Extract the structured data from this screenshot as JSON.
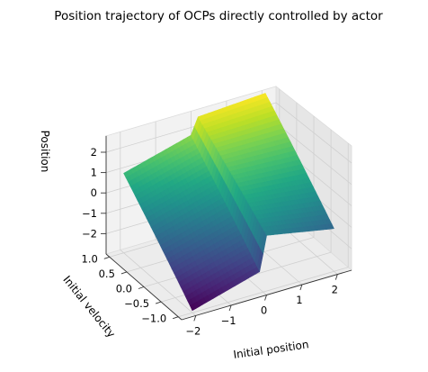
{
  "chart_data": {
    "type": "surface3d",
    "title": "Position trajectory of OCPs directly controlled by actor",
    "xlabel": "Initial position",
    "ylabel": "Initial velocity",
    "zlabel": "Position",
    "xlim": [
      -2.4,
      2.4
    ],
    "ylim": [
      -1.1,
      1.1
    ],
    "zlim": [
      -3.0,
      2.8
    ],
    "x_ticks": [
      -2,
      -1,
      0,
      1,
      2
    ],
    "y_ticks": [
      -1.0,
      -0.5,
      0.0,
      0.5,
      1.0
    ],
    "z_ticks": [
      -2,
      -1,
      0,
      1,
      2
    ],
    "colormap": "viridis",
    "grid": true,
    "surface": {
      "x_range": [
        -2.0,
        2.0
      ],
      "y_range": [
        -1.0,
        1.0
      ],
      "description_points": [
        {
          "x": -2.0,
          "y": -1.0,
          "z": -2.9
        },
        {
          "x": -0.1,
          "y": -1.0,
          "z": -2.0
        },
        {
          "x": 0.1,
          "y": -1.0,
          "z": -0.4
        },
        {
          "x": 2.0,
          "y": -1.0,
          "z": -1.0
        },
        {
          "x": -2.0,
          "y": 1.0,
          "z": 0.9
        },
        {
          "x": -0.1,
          "y": 1.0,
          "z": 1.8
        },
        {
          "x": 0.1,
          "y": 1.0,
          "z": 2.6
        },
        {
          "x": 2.0,
          "y": 1.0,
          "z": 2.8
        }
      ]
    }
  }
}
